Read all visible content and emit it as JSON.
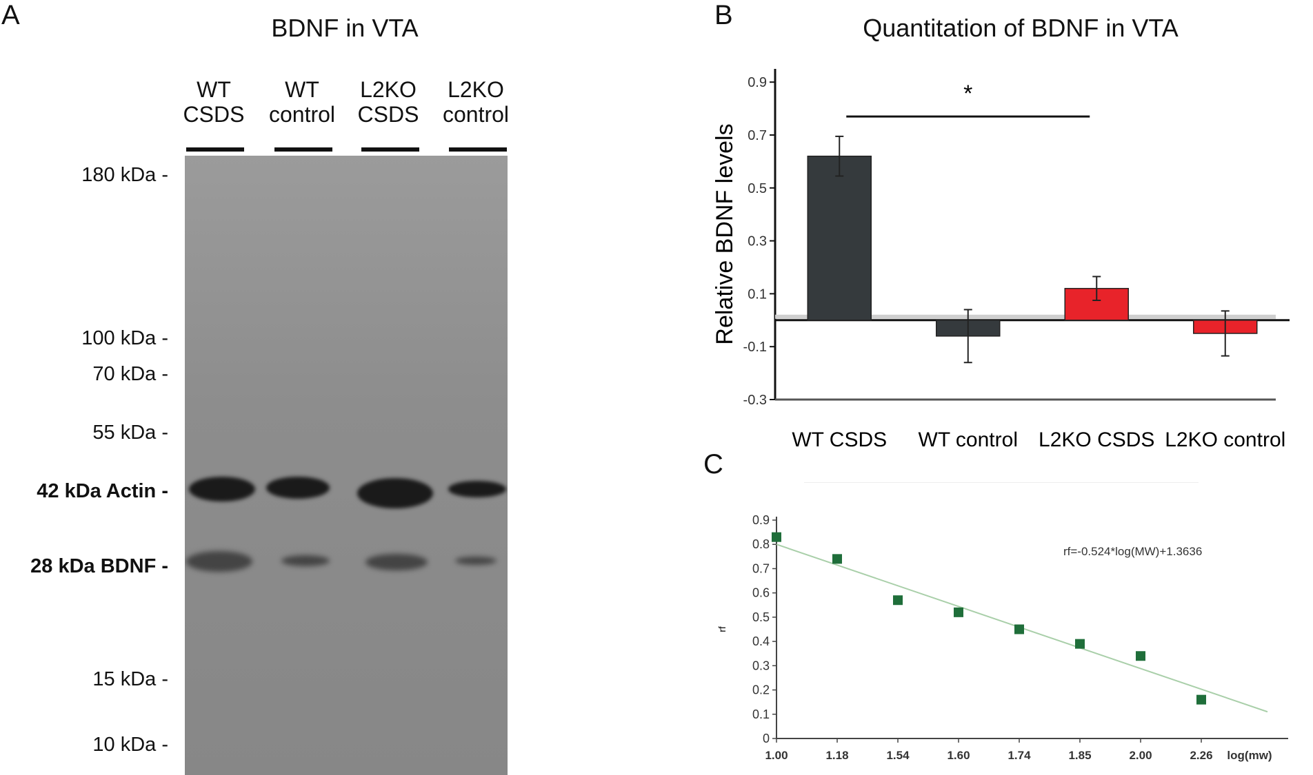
{
  "panels": {
    "a": {
      "letter": "A",
      "title": "BDNF in VTA"
    },
    "b": {
      "letter": "B",
      "title": "Quantitation of BDNF in VTA"
    },
    "c": {
      "letter": "C"
    }
  },
  "blot": {
    "lanes": [
      {
        "line1": "WT",
        "line2": "CSDS"
      },
      {
        "line1": "WT",
        "line2": "control"
      },
      {
        "line1": "L2KO",
        "line2": "CSDS"
      },
      {
        "line1": "L2KO",
        "line2": "control"
      }
    ],
    "markers": [
      {
        "label": "180 kDa -",
        "bold": false
      },
      {
        "label": "100 kDa -",
        "bold": false
      },
      {
        "label": "70 kDa -",
        "bold": false
      },
      {
        "label": "55 kDa -",
        "bold": false
      },
      {
        "label": "42 kDa Actin -",
        "bold": true
      },
      {
        "label": "28 kDa BDNF -",
        "bold": true
      },
      {
        "label": "15 kDa -",
        "bold": false
      },
      {
        "label": "10 kDa -",
        "bold": false
      }
    ],
    "actin_intensity": [
      0.85,
      0.8,
      1.0,
      0.6
    ],
    "bdnf_intensity": [
      0.55,
      0.1,
      0.35,
      0.05
    ]
  },
  "chart_data": [
    {
      "type": "bar",
      "title": "Quantitation of BDNF in VTA",
      "ylabel": "Relative BDNF levels",
      "categories": [
        "WT CSDS",
        "WT control",
        "L2KO CSDS",
        "L2KO control"
      ],
      "values": [
        0.62,
        -0.06,
        0.12,
        -0.05
      ],
      "errors": [
        0.075,
        0.1,
        0.045,
        0.085
      ],
      "colors": [
        "#353a3d",
        "#353a3d",
        "#e8232a",
        "#e8232a"
      ],
      "ylim": [
        -0.3,
        0.95
      ],
      "yticks": [
        "0.9",
        "0.7",
        "0.5",
        "0.3",
        "0.1",
        "-0.1",
        "-0.3"
      ],
      "significance": {
        "from": 0,
        "to": 2,
        "label": "*"
      }
    },
    {
      "type": "scatter",
      "xlabel": "log(mw)",
      "ylabel": "rf",
      "x_ticks": [
        "1.00",
        "1.18",
        "1.54",
        "1.60",
        "1.74",
        "1.85",
        "2.00",
        "2.26"
      ],
      "points": [
        {
          "x": "1.00",
          "y": 0.83
        },
        {
          "x": "1.18",
          "y": 0.74
        },
        {
          "x": "1.54",
          "y": 0.57
        },
        {
          "x": "1.60",
          "y": 0.52
        },
        {
          "x": "1.74",
          "y": 0.45
        },
        {
          "x": "1.85",
          "y": 0.39
        },
        {
          "x": "2.00",
          "y": 0.34
        },
        {
          "x": "2.26",
          "y": 0.16
        }
      ],
      "fit_line": {
        "start": 0.8,
        "end": 0.11
      },
      "ylim": [
        0,
        0.9
      ],
      "yticks": [
        "0.9",
        "0.8",
        "0.7",
        "0.6",
        "0.5",
        "0.4",
        "0.3",
        "0.2",
        "0.1",
        "0"
      ],
      "equation": "rf=-0.524*log(MW)+1.3636",
      "point_color": "#1f6e3a",
      "line_color": "#a9cfa9"
    }
  ]
}
